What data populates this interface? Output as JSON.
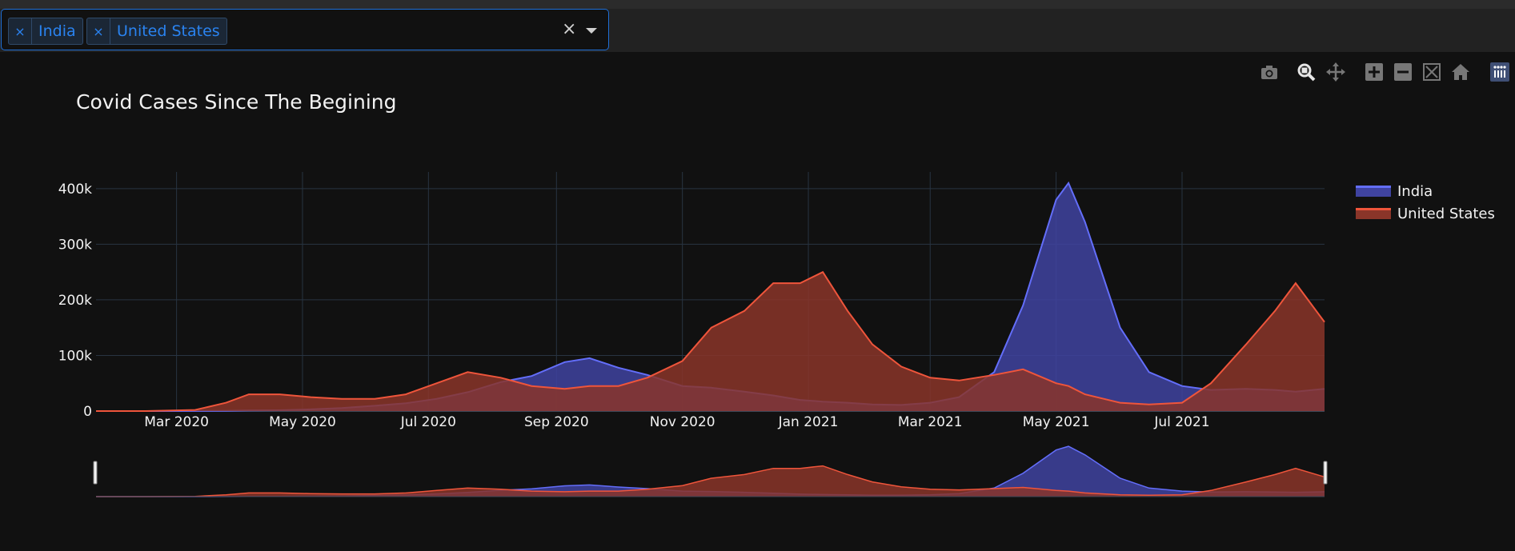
{
  "filter": {
    "chips": [
      {
        "label": "India",
        "remove": "×"
      },
      {
        "label": "United States",
        "remove": "×"
      }
    ],
    "clear": "×"
  },
  "modebar_icons": [
    "camera-icon",
    "zoom-icon",
    "pan-icon",
    "zoom-in-icon",
    "zoom-out-icon",
    "autoscale-icon",
    "reset-home-icon",
    "plotly-logo-icon"
  ],
  "colors": {
    "india": "#636efa",
    "india_fill": "#3f43a0",
    "us": "#ef553b",
    "us_fill": "#8a3529",
    "bg": "#111111",
    "grid": "#283442"
  },
  "chart_data": {
    "type": "area",
    "title": "Covid Cases Since The Begining",
    "xlabel": "",
    "ylabel": "",
    "x_ticks": [
      "Mar 2020",
      "May 2020",
      "Jul 2020",
      "Sep 2020",
      "Nov 2020",
      "Jan 2021",
      "Mar 2021",
      "May 2021",
      "Jul 2021"
    ],
    "y_ticks": [
      "0",
      "100k",
      "200k",
      "300k",
      "400k"
    ],
    "ylim": [
      0,
      430000
    ],
    "xlim": [
      "2020-01-22",
      "2021-09-08"
    ],
    "x": [
      "2020-01-22",
      "2020-02-15",
      "2020-03-10",
      "2020-03-25",
      "2020-04-05",
      "2020-04-20",
      "2020-05-05",
      "2020-05-20",
      "2020-06-05",
      "2020-06-20",
      "2020-07-05",
      "2020-07-20",
      "2020-08-05",
      "2020-08-20",
      "2020-09-05",
      "2020-09-17",
      "2020-10-01",
      "2020-10-15",
      "2020-11-01",
      "2020-11-15",
      "2020-12-01",
      "2020-12-15",
      "2020-12-28",
      "2021-01-08",
      "2021-01-20",
      "2021-02-01",
      "2021-02-15",
      "2021-03-01",
      "2021-03-15",
      "2021-04-01",
      "2021-04-15",
      "2021-05-01",
      "2021-05-07",
      "2021-05-15",
      "2021-06-01",
      "2021-06-15",
      "2021-07-01",
      "2021-07-15",
      "2021-08-01",
      "2021-08-15",
      "2021-08-25",
      "2021-09-08"
    ],
    "series": [
      {
        "name": "India",
        "values": [
          0,
          0,
          100,
          500,
          1000,
          1500,
          3000,
          5500,
          9500,
          14000,
          22000,
          34000,
          52000,
          63000,
          88000,
          95000,
          78000,
          65000,
          45000,
          42000,
          35000,
          28000,
          20000,
          17000,
          15000,
          12000,
          11000,
          15000,
          25000,
          70000,
          190000,
          380000,
          410000,
          340000,
          150000,
          70000,
          45000,
          38000,
          40000,
          38000,
          35000,
          40000
        ]
      },
      {
        "name": "United States",
        "values": [
          0,
          0,
          2000,
          15000,
          30000,
          30000,
          25000,
          22000,
          22000,
          30000,
          50000,
          70000,
          60000,
          45000,
          40000,
          45000,
          45000,
          60000,
          90000,
          150000,
          180000,
          230000,
          230000,
          250000,
          180000,
          120000,
          80000,
          60000,
          55000,
          65000,
          75000,
          50000,
          45000,
          30000,
          15000,
          12000,
          15000,
          50000,
          120000,
          180000,
          230000,
          160000
        ]
      }
    ],
    "legend_position": "top-right",
    "grid": true,
    "range_slider": true
  }
}
